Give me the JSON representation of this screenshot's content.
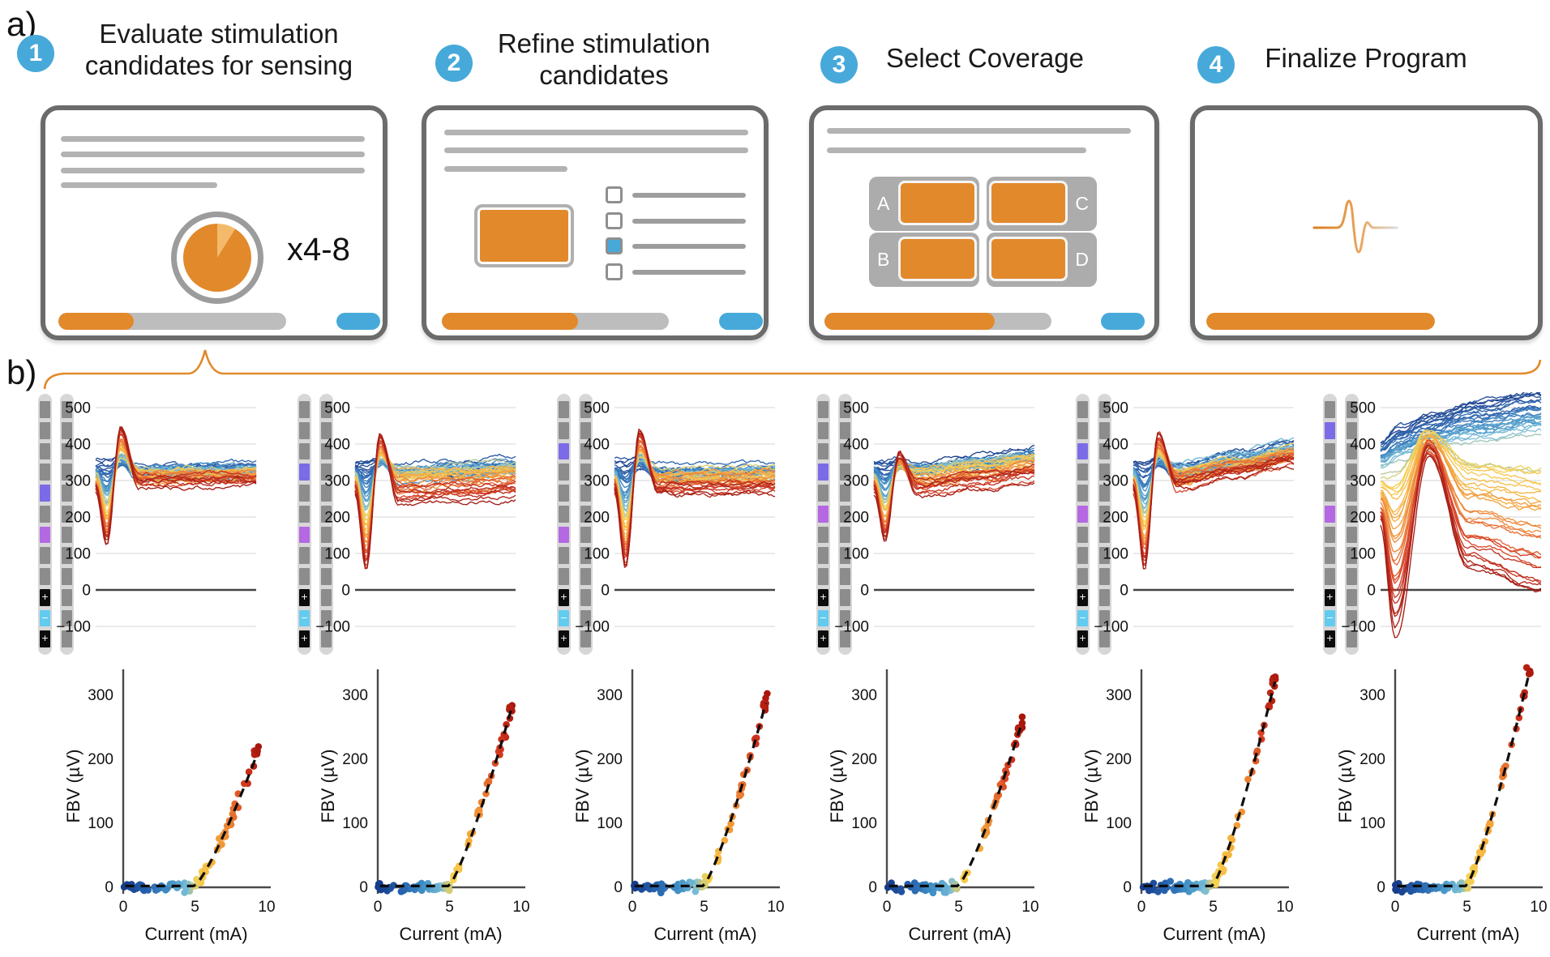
{
  "figure_labels": {
    "a": "a)",
    "b": "b)"
  },
  "accent_colors": {
    "blue": "#47a9d9",
    "orange": "#e2892b",
    "orange_light": "#f4ba6b",
    "card_border": "#6b6b6b"
  },
  "steps": [
    {
      "number": "1",
      "title": "Evaluate stimulation\ncandidates for sensing",
      "annotation": "x4-8",
      "progress": 33,
      "has_button": true
    },
    {
      "number": "2",
      "title": "Refine stimulation\ncandidates",
      "progress": 60,
      "has_button": true,
      "checklist": {
        "rows": 4,
        "checked_row": 3
      }
    },
    {
      "number": "3",
      "title": "Select Coverage",
      "progress": 75,
      "has_button": true,
      "coverage_labels": [
        "A",
        "B",
        "C",
        "D"
      ]
    },
    {
      "number": "4",
      "title": "Finalize Program",
      "progress": 100,
      "has_button": false
    }
  ],
  "electrode_legend": {
    "g": "#8c8c8c",
    "p1": "#7b6be6",
    "p2": "#b468e2",
    "k+": "#0c0c0c",
    "c-": "#63cbf0",
    "symbols": {
      "k+": "+",
      "c-": "−"
    }
  },
  "electrode_panels": [
    {
      "lead1": [
        "g",
        "g",
        "g",
        "g",
        "p1",
        "g",
        "p2",
        "g",
        "g",
        "k+",
        "c-",
        "k+"
      ],
      "lead2": [
        "g",
        "g",
        "g",
        "g",
        "g",
        "g",
        "g",
        "g",
        "g",
        "g",
        "g",
        "g"
      ]
    },
    {
      "lead1": [
        "g",
        "g",
        "g",
        "p1",
        "g",
        "g",
        "p2",
        "g",
        "g",
        "k+",
        "c-",
        "k+"
      ],
      "lead2": [
        "g",
        "g",
        "g",
        "g",
        "g",
        "g",
        "g",
        "g",
        "g",
        "g",
        "g",
        "g"
      ]
    },
    {
      "lead1": [
        "g",
        "g",
        "p1",
        "g",
        "g",
        "g",
        "p2",
        "g",
        "g",
        "k+",
        "c-",
        "k+"
      ],
      "lead2": [
        "g",
        "g",
        "g",
        "g",
        "g",
        "g",
        "g",
        "g",
        "g",
        "g",
        "g",
        "g"
      ]
    },
    {
      "lead1": [
        "g",
        "g",
        "g",
        "p1",
        "g",
        "p2",
        "g",
        "g",
        "g",
        "k+",
        "c-",
        "k+"
      ],
      "lead2": [
        "g",
        "g",
        "g",
        "g",
        "g",
        "g",
        "g",
        "g",
        "g",
        "g",
        "g",
        "g"
      ]
    },
    {
      "lead1": [
        "g",
        "g",
        "p1",
        "g",
        "g",
        "p2",
        "g",
        "g",
        "g",
        "k+",
        "c-",
        "k+"
      ],
      "lead2": [
        "g",
        "g",
        "g",
        "g",
        "g",
        "g",
        "g",
        "g",
        "g",
        "g",
        "g",
        "g"
      ]
    },
    {
      "lead1": [
        "g",
        "p1",
        "g",
        "g",
        "g",
        "p2",
        "g",
        "g",
        "g",
        "k+",
        "c-",
        "k+"
      ],
      "lead2": [
        "g",
        "g",
        "g",
        "g",
        "g",
        "g",
        "g",
        "g",
        "g",
        "g",
        "g",
        "g"
      ]
    }
  ],
  "chart_data": {
    "trace_row": {
      "type": "line",
      "n_panels": 6,
      "traces_per_panel": 55,
      "yticks": [
        500,
        400,
        300,
        200,
        100,
        0,
        -100
      ],
      "ylim": [
        -150,
        540
      ],
      "grid": "horizontal light gray, dark line at 0",
      "colormap": "dark blue → light blue → yellow → orange → red (by stimulation current)",
      "panel_profiles": [
        {
          "type": "standard",
          "dip_min": 125,
          "peak": 452,
          "drift": 5,
          "red_settle_offset": -10
        },
        {
          "type": "standard",
          "dip_min": 60,
          "peak": 430,
          "drift": 15,
          "red_settle_offset": -60
        },
        {
          "type": "standard",
          "dip_min": 65,
          "peak": 440,
          "drift": 5,
          "red_settle_offset": -30
        },
        {
          "type": "standard",
          "dip_min": 135,
          "peak": 372,
          "drift": 40,
          "red_settle_offset": -40
        },
        {
          "type": "standard",
          "dip_min": 60,
          "peak": 435,
          "drift": 60,
          "red_settle_offset": -20
        },
        {
          "type": "fanout"
        }
      ]
    },
    "scatter_row": {
      "type": "scatter",
      "n_panels": 6,
      "xlabel": "Current (mA)",
      "ylabel": "FBV (µV)",
      "xticks": [
        0,
        5,
        10
      ],
      "yticks": [
        0,
        100,
        200,
        300
      ],
      "xlim": [
        0,
        10.3
      ],
      "ylim": [
        -20,
        370
      ],
      "fit_line": "dashed black; flat at 0 until hinge then monotonic rise",
      "hinge_mA": 4.9,
      "max_fbv_uV": [
        215,
        290,
        300,
        260,
        335,
        345
      ]
    }
  }
}
